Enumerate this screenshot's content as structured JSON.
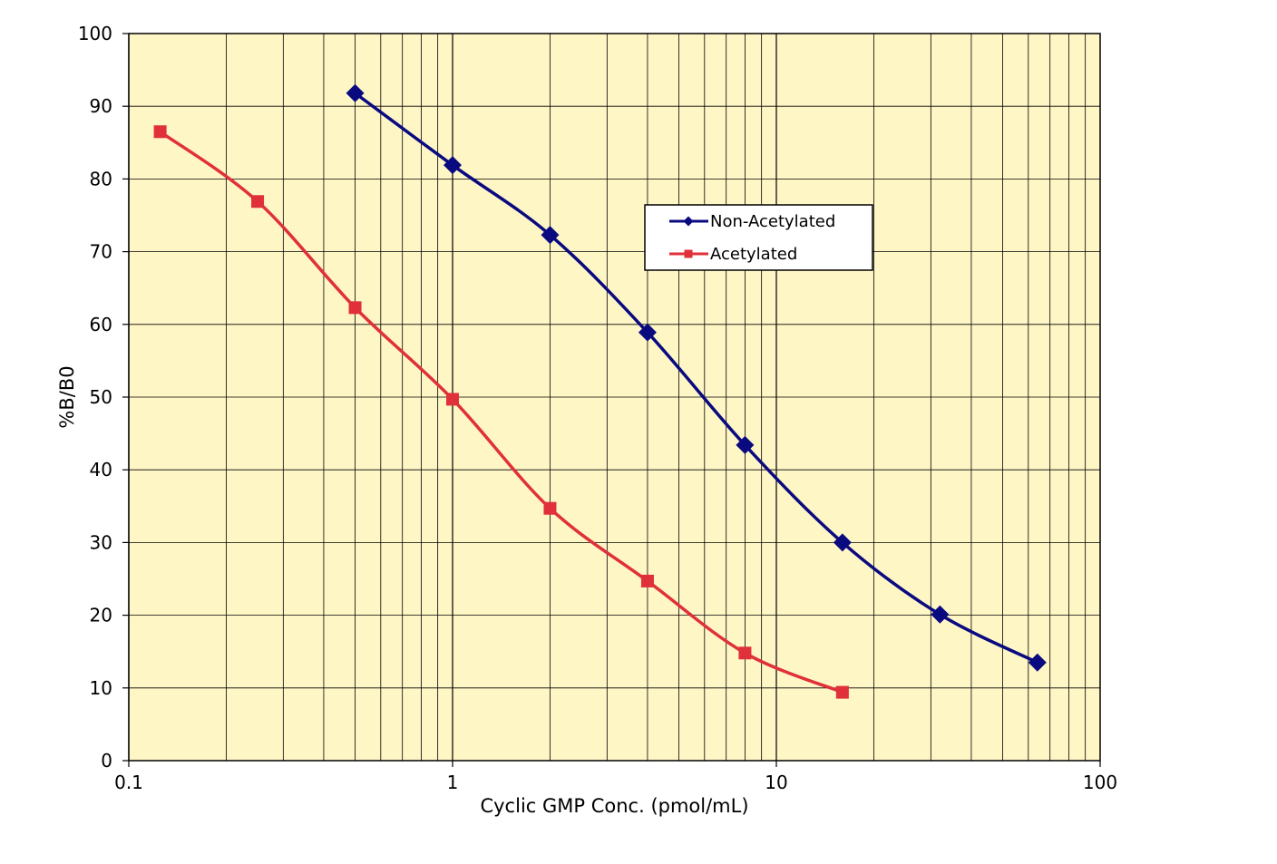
{
  "chart_data": {
    "type": "line",
    "xscale": "log",
    "xlim": [
      0.1,
      100
    ],
    "ylim": [
      0,
      100
    ],
    "xlabel": "Cyclic GMP Conc. (pmol/mL)",
    "ylabel": "%B/B0",
    "x_ticks": [
      "0.1",
      "1",
      "10",
      "100"
    ],
    "y_ticks": [
      "0",
      "10",
      "20",
      "30",
      "40",
      "50",
      "60",
      "70",
      "80",
      "90",
      "100"
    ],
    "grid": true,
    "background_color": "#FFF6C6",
    "legend_position": "center-right",
    "series": [
      {
        "name": "Non-Acetylated",
        "color": "#0A0A80",
        "marker": "diamond",
        "x": [
          0.5,
          1,
          2,
          4,
          8,
          16,
          32,
          64
        ],
        "y": [
          91.8,
          81.9,
          72.3,
          58.9,
          43.4,
          30.0,
          20.1,
          13.5
        ]
      },
      {
        "name": "Acetylated",
        "color": "#E0303A",
        "marker": "square",
        "x": [
          0.125,
          0.25,
          0.5,
          1,
          2,
          4,
          8,
          16
        ],
        "y": [
          86.5,
          76.9,
          62.3,
          49.7,
          34.7,
          24.7,
          14.8,
          9.4
        ]
      }
    ]
  }
}
